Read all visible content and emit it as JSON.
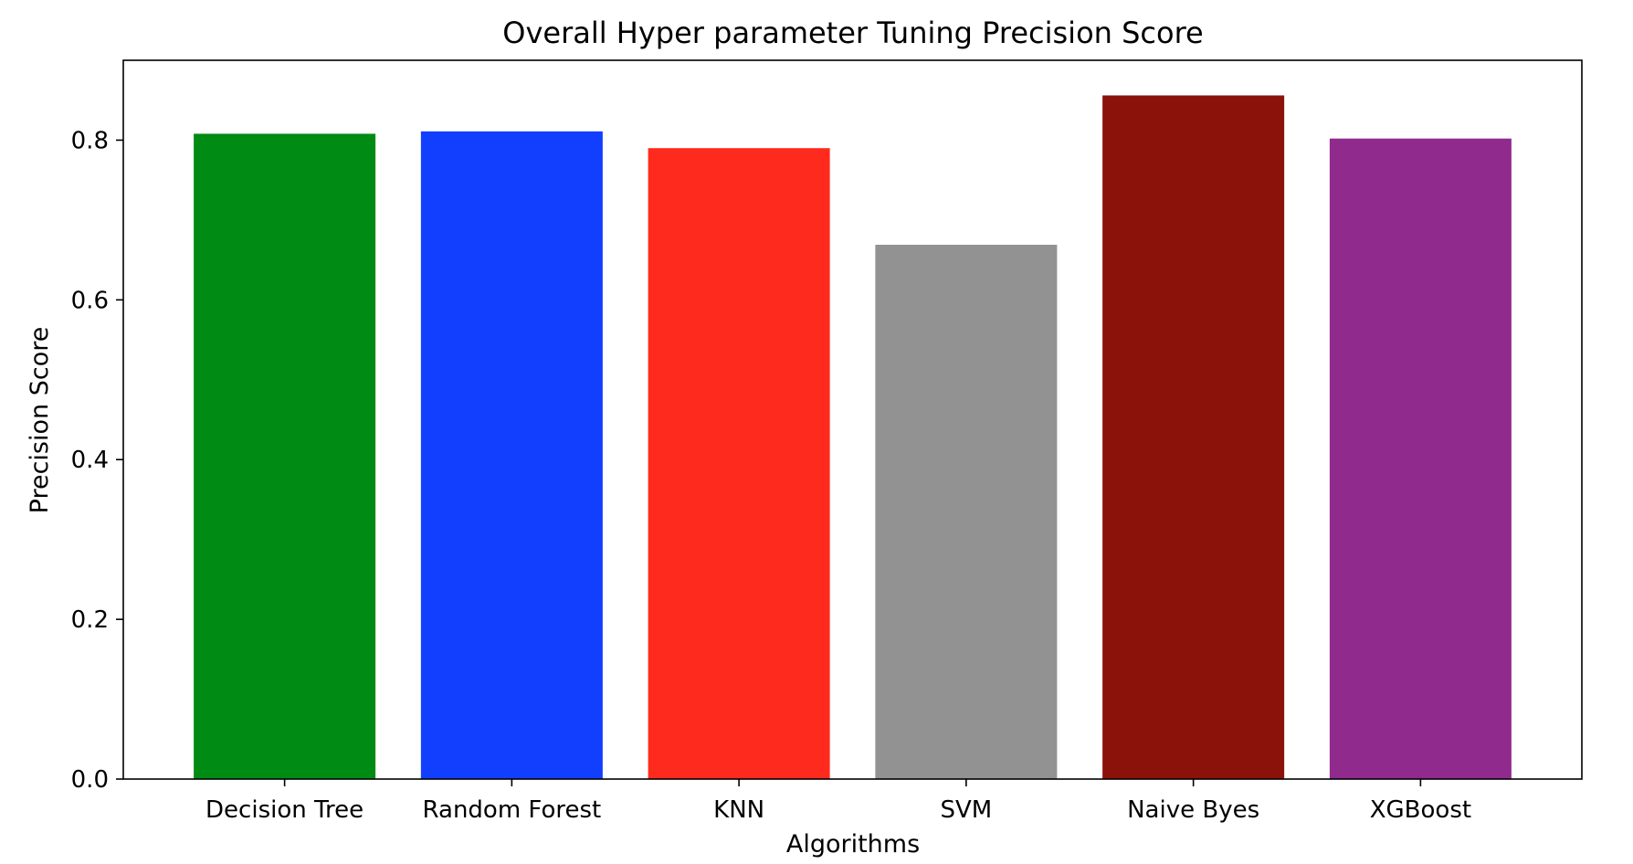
{
  "chart_data": {
    "type": "bar",
    "title": "Overall Hyper parameter Tuning Precision Score",
    "xlabel": "Algorithms",
    "ylabel": "Precision Score",
    "categories": [
      "Decision Tree",
      "Random Forest",
      "KNN",
      "SVM",
      "Naive Byes",
      "XGBoost"
    ],
    "values": [
      0.808,
      0.811,
      0.79,
      0.669,
      0.856,
      0.802
    ],
    "colors": [
      "#008b14",
      "#123ffe",
      "#ff2a1e",
      "#929292",
      "#8b120a",
      "#912a8d"
    ],
    "ylim": [
      0,
      0.9
    ],
    "yticks": [
      0.0,
      0.2,
      0.4,
      0.6,
      0.8
    ],
    "ytick_labels": [
      "0.0",
      "0.2",
      "0.4",
      "0.6",
      "0.8"
    ],
    "grid": false,
    "legend": "none"
  }
}
